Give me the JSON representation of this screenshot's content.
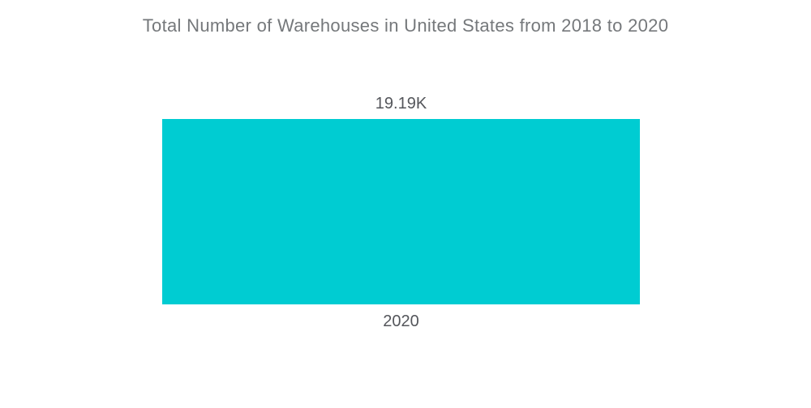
{
  "header": {
    "title": "Total Number of Warehouses in United States from 2018 to 2020"
  },
  "chart_data": {
    "type": "bar",
    "title": "Total Number of Warehouses in United States from 2018 to 2020",
    "categories": [
      "2020"
    ],
    "values": [
      19190
    ],
    "value_labels": [
      "19.19K"
    ],
    "series": [
      {
        "name": "Total Number of Warehouses",
        "values": [
          19190
        ]
      }
    ],
    "xlabel": "",
    "ylabel": "",
    "ylim": [
      0,
      19190
    ],
    "grid": false,
    "axes_visible": false,
    "legend_position": "none",
    "bar_color": "#00ccd2",
    "title_color": "#75787b",
    "label_color": "#54565b",
    "background_color": "#ffffff"
  }
}
